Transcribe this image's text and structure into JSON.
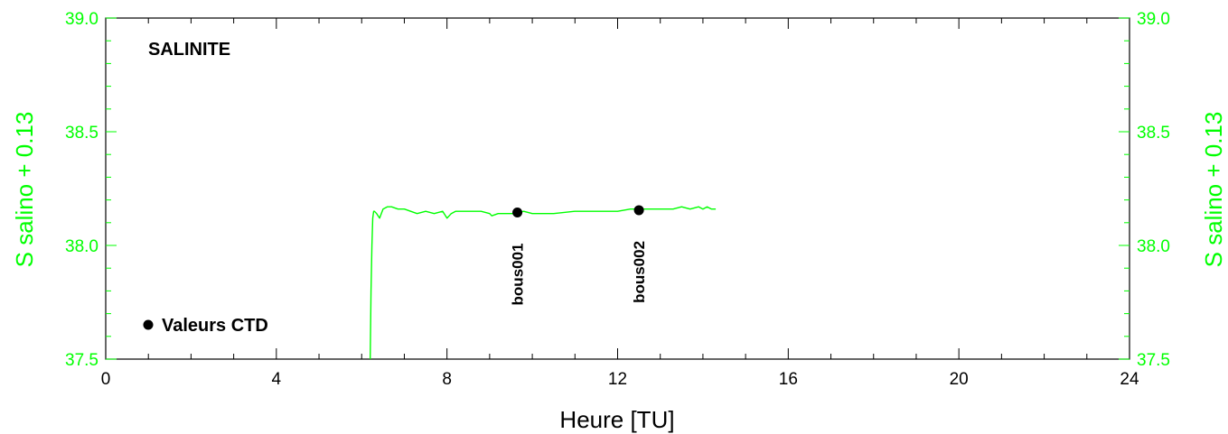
{
  "chart_data": {
    "type": "line",
    "title": "SALINITE",
    "xlabel": "Heure [TU]",
    "ylabel_left": "S salino + 0.13",
    "ylabel_right": "S salino + 0.13",
    "xlim": [
      0,
      24
    ],
    "ylim": [
      37.5,
      39.0
    ],
    "x_ticks": [
      0,
      4,
      8,
      12,
      16,
      20,
      24
    ],
    "x_tick_labels": [
      "0",
      "4",
      "8",
      "12",
      "16",
      "20",
      "24"
    ],
    "y_ticks": [
      37.5,
      38.0,
      38.5,
      39.0
    ],
    "y_tick_labels": [
      "37.5",
      "38.0",
      "38.5",
      "39.0"
    ],
    "grid": false,
    "colors": {
      "series": "#00ff00",
      "axis_labels": "#00ff00",
      "frame": "#000000",
      "points": "#000000"
    },
    "series": [
      {
        "x": [
          6.2,
          6.22,
          6.24,
          6.26,
          6.28,
          6.3,
          6.35,
          6.42,
          6.5,
          6.6,
          6.7,
          6.85,
          7.0,
          7.15,
          7.3,
          7.5,
          7.7,
          7.9,
          8.0,
          8.1,
          8.2,
          8.4,
          8.6,
          8.8,
          9.0,
          9.05,
          9.2,
          9.4,
          9.6,
          9.8,
          10.0,
          10.5,
          11.0,
          11.5,
          12.0,
          12.3,
          12.5,
          12.7,
          13.0,
          13.3,
          13.5,
          13.7,
          13.9,
          14.0,
          14.1,
          14.2,
          14.3
        ],
        "y": [
          37.5,
          37.8,
          38.0,
          38.12,
          38.15,
          38.15,
          38.14,
          38.12,
          38.16,
          38.17,
          38.17,
          38.16,
          38.16,
          38.15,
          38.14,
          38.15,
          38.14,
          38.15,
          38.12,
          38.14,
          38.15,
          38.15,
          38.15,
          38.15,
          38.14,
          38.13,
          38.14,
          38.14,
          38.14,
          38.15,
          38.14,
          38.14,
          38.15,
          38.15,
          38.15,
          38.16,
          38.16,
          38.16,
          38.16,
          38.16,
          38.17,
          38.16,
          38.17,
          38.16,
          38.17,
          38.16,
          38.16
        ]
      }
    ],
    "points": {
      "legend_label": "Valeurs CTD",
      "items": [
        {
          "x": 9.65,
          "y": 38.145,
          "label": "bous001"
        },
        {
          "x": 12.5,
          "y": 38.155,
          "label": "bous002"
        }
      ]
    }
  }
}
